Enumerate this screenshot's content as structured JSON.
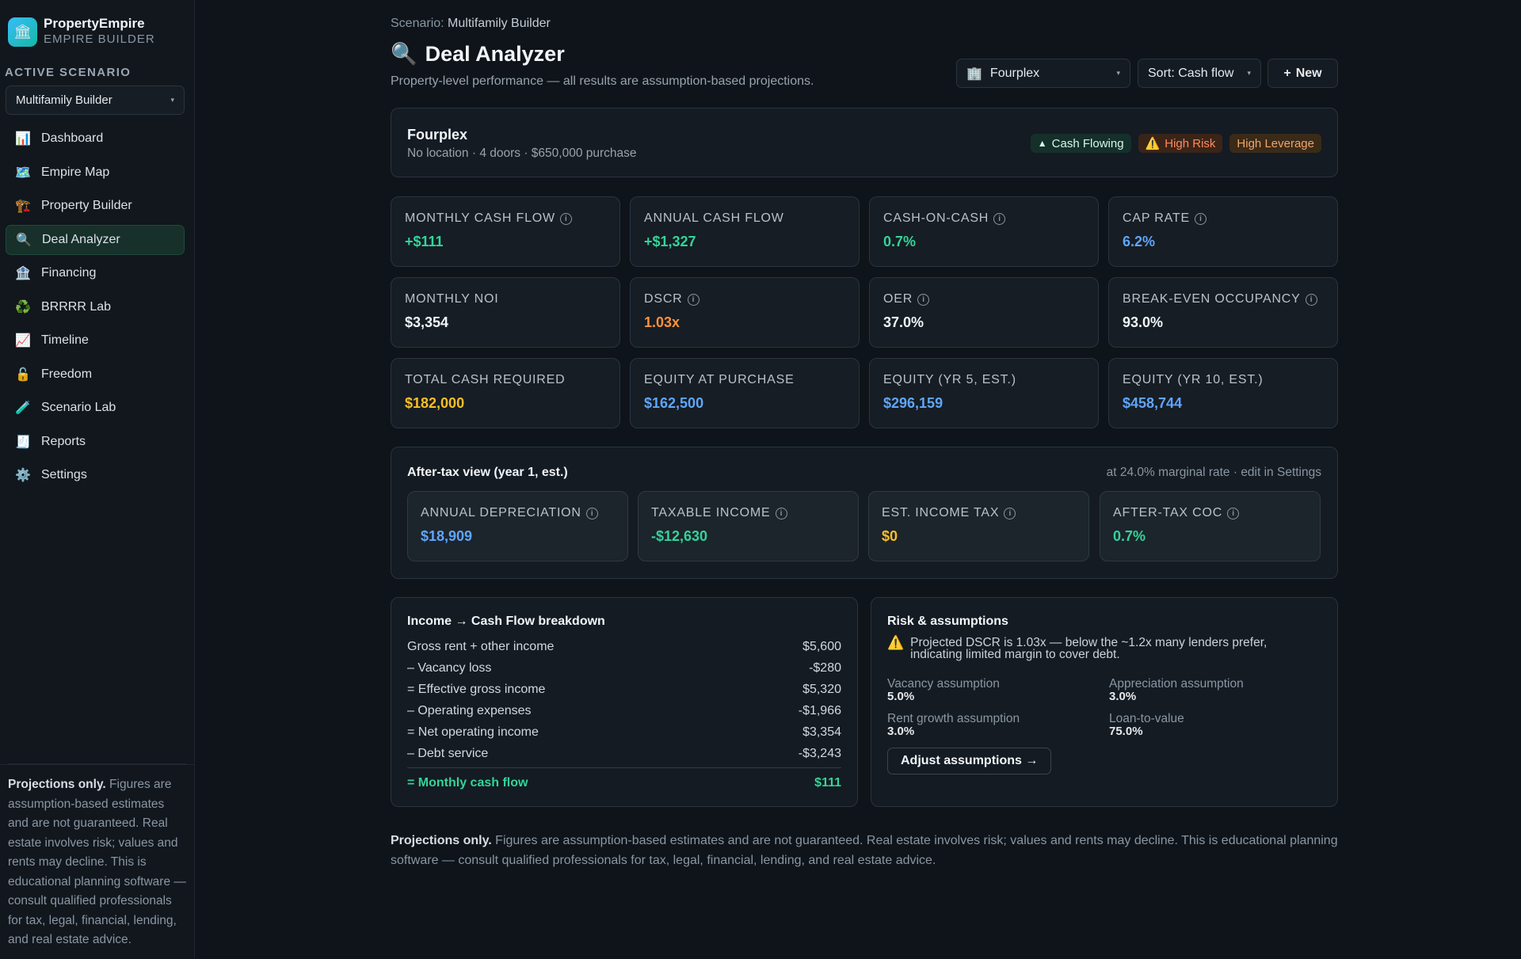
{
  "app": {
    "name": "PropertyEmpire",
    "subtitle": "EMPIRE BUILDER",
    "logo_icon": "bank-icon"
  },
  "sidebar": {
    "active_label": "ACTIVE SCENARIO",
    "scenario_value": "Multifamily Builder",
    "items": [
      {
        "label": "Dashboard",
        "icon": "📊"
      },
      {
        "label": "Empire Map",
        "icon": "🗺️"
      },
      {
        "label": "Property Builder",
        "icon": "🏗️"
      },
      {
        "label": "Deal Analyzer",
        "icon": "🔍"
      },
      {
        "label": "Financing",
        "icon": "🏦"
      },
      {
        "label": "BRRRR Lab",
        "icon": "♻️"
      },
      {
        "label": "Timeline",
        "icon": "📈"
      },
      {
        "label": "Freedom",
        "icon": "🔓"
      },
      {
        "label": "Scenario Lab",
        "icon": "🧪"
      },
      {
        "label": "Reports",
        "icon": "🧾"
      },
      {
        "label": "Settings",
        "icon": "⚙️"
      }
    ],
    "disclaimer_bold": "Projections only.",
    "disclaimer": " Figures are assumption-based estimates and are not guaranteed. Real estate involves risk; values and rents may decline. This is educational planning software — consult qualified professionals for tax, legal, financial, lending, and real estate advice."
  },
  "header": {
    "crumb_label": "Scenario:",
    "crumb_value": "Multifamily Builder",
    "title_icon": "🔍",
    "title": "Deal Analyzer",
    "subtitle": "Property-level performance — all results are assumption-based projections.",
    "property_select": "Fourplex",
    "property_icon": "🏢",
    "sort": "Sort: Cash flow",
    "new_button": "New",
    "new_icon": "+"
  },
  "property": {
    "name": "Fourplex",
    "details": "No location · 4 doors · $650,000 purchase",
    "badges": [
      {
        "icon": "▲",
        "label": "Cash Flowing"
      },
      {
        "icon": "⚠️",
        "label": "High Risk"
      },
      {
        "icon": "",
        "label": "High Leverage"
      }
    ]
  },
  "metrics": [
    {
      "label": "MONTHLY CASH FLOW",
      "value": "+$111",
      "info": true,
      "color": "#34d399"
    },
    {
      "label": "ANNUAL CASH FLOW",
      "value": "+$1,327",
      "info": false,
      "color": "#34d399"
    },
    {
      "label": "CASH-ON-CASH",
      "value": "0.7%",
      "info": true,
      "color": "#34d399"
    },
    {
      "label": "CAP RATE",
      "value": "6.2%",
      "info": true,
      "color": "#60a5fa"
    },
    {
      "label": "MONTHLY NOI",
      "value": "$3,354",
      "info": false,
      "color": "#f1f5f9"
    },
    {
      "label": "DSCR",
      "value": "1.03x",
      "info": true,
      "color": "#fb923c"
    },
    {
      "label": "OER",
      "value": "37.0%",
      "info": true,
      "color": "#f1f5f9"
    },
    {
      "label": "BREAK-EVEN OCCUPANCY",
      "value": "93.0%",
      "info": true,
      "color": "#f1f5f9"
    },
    {
      "label": "TOTAL CASH REQUIRED",
      "value": "$182,000",
      "info": false,
      "color": "#fbbf24"
    },
    {
      "label": "EQUITY AT PURCHASE",
      "value": "$162,500",
      "info": false,
      "color": "#60a5fa"
    },
    {
      "label": "EQUITY (YR 5, EST.)",
      "value": "$296,159",
      "info": false,
      "color": "#60a5fa"
    },
    {
      "label": "EQUITY (YR 10, EST.)",
      "value": "$458,744",
      "info": false,
      "color": "#60a5fa"
    }
  ],
  "tax": {
    "title": "After-tax view (year 1, est.)",
    "note": "at 24.0% marginal rate · edit in Settings",
    "cards": [
      {
        "label": "ANNUAL DEPRECIATION",
        "value": "$18,909",
        "color": "#60a5fa"
      },
      {
        "label": "TAXABLE INCOME",
        "value": "-$12,630",
        "color": "#34d399"
      },
      {
        "label": "EST. INCOME TAX",
        "value": "$0",
        "color": "#fbbf24"
      },
      {
        "label": "AFTER-TAX COC",
        "value": "0.7%",
        "color": "#34d399"
      }
    ]
  },
  "breakdown": {
    "title": "Income → Cash Flow breakdown",
    "rows": [
      {
        "label": "Gross rent + other income",
        "value": "$5,600"
      },
      {
        "label": "– Vacancy loss",
        "value": "-$280"
      },
      {
        "label": "= Effective gross income",
        "value": "$5,320"
      },
      {
        "label": "– Operating expenses",
        "value": "-$1,966"
      },
      {
        "label": "= Net operating income",
        "value": "$3,354"
      },
      {
        "label": "– Debt service",
        "value": "-$3,243"
      }
    ],
    "total_label": "= Monthly cash flow",
    "total_value": "$111"
  },
  "risk": {
    "title": "Risk & assumptions",
    "warning_icon": "⚠️",
    "warning": "Projected DSCR is 1.03x — below the ~1.2x many lenders prefer, indicating limited margin to cover debt.",
    "assumptions": [
      {
        "label": "Vacancy assumption",
        "value": "5.0%"
      },
      {
        "label": "Appreciation assumption",
        "value": "3.0%"
      },
      {
        "label": "Rent growth assumption",
        "value": "3.0%"
      },
      {
        "label": "Loan-to-value",
        "value": "75.0%"
      }
    ],
    "adjust_button": "Adjust assumptions →"
  },
  "footer": {
    "bold": "Projections only.",
    "text": " Figures are assumption-based estimates and are not guaranteed. Real estate involves risk; values and rents may decline. This is educational planning software — consult qualified professionals for tax, legal, financial, lending, and real estate advice."
  }
}
